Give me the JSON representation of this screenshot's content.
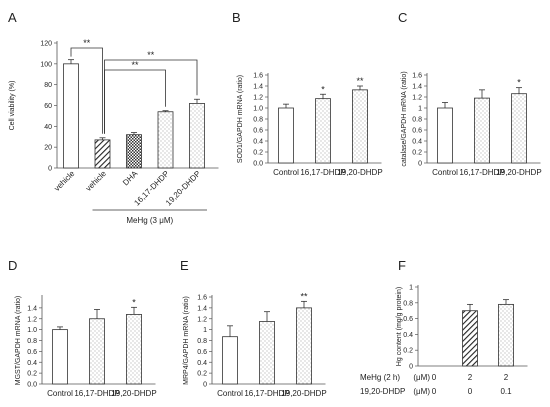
{
  "chart_data": [
    {
      "type": "bar",
      "panel": "A",
      "ylabel": "Cell viability (%)",
      "ylim": [
        0,
        120
      ],
      "yticks": [
        0,
        20,
        40,
        60,
        80,
        100,
        120
      ],
      "categories": [
        "vehicle",
        "vehicle",
        "DHA",
        "16,17-DHDP",
        "19,20-DHDP"
      ],
      "values": [
        100,
        27,
        32,
        54,
        62
      ],
      "errors": [
        4,
        2,
        2,
        1,
        4
      ],
      "patterns": [
        "white",
        "hatch",
        "crosshatch",
        "dots",
        "dots"
      ],
      "treatment_label": "MeHg (3 μM)",
      "significance": [
        {
          "from": 0,
          "to": 1,
          "label": "**"
        },
        {
          "from": 1,
          "to": 3,
          "label": "**"
        },
        {
          "from": 1,
          "to": 4,
          "label": "**"
        }
      ]
    },
    {
      "type": "bar",
      "panel": "B",
      "ylabel": "SOD1/GAPDH mRNA (ratio)",
      "ylim": [
        0,
        1.6
      ],
      "yticks": [
        0.0,
        0.2,
        0.4,
        0.6,
        0.8,
        1.0,
        1.2,
        1.4,
        1.6
      ],
      "categories": [
        "Control",
        "16,17-DHDP",
        "19,20-DHDP"
      ],
      "values": [
        1.0,
        1.17,
        1.33
      ],
      "errors": [
        0.07,
        0.08,
        0.07
      ],
      "patterns": [
        "white",
        "dots",
        "dots"
      ],
      "marks": [
        "",
        "*",
        "**"
      ]
    },
    {
      "type": "bar",
      "panel": "C",
      "ylabel": "catalase/GAPDH mRNA (ratio)",
      "ylim": [
        0,
        1.6
      ],
      "yticks": [
        0,
        0.2,
        0.4,
        0.6,
        0.8,
        1,
        1.2,
        1.4,
        1.6
      ],
      "categories": [
        "Control",
        "16,17-DHDP",
        "19,20-DHDP"
      ],
      "values": [
        1.0,
        1.18,
        1.26
      ],
      "errors": [
        0.1,
        0.15,
        0.11
      ],
      "patterns": [
        "white",
        "dots",
        "dots"
      ],
      "marks": [
        "",
        "",
        "*"
      ]
    },
    {
      "type": "bar",
      "panel": "D",
      "ylabel": "MGST/GAPDH mRNA (ratio)",
      "ylim": [
        0,
        1.6
      ],
      "yticks": [
        0.0,
        0.2,
        0.4,
        0.6,
        0.8,
        1.0,
        1.2,
        1.4
      ],
      "categories": [
        "Control",
        "16,17-DHDP",
        "19,20-DHDP"
      ],
      "values": [
        1.0,
        1.2,
        1.28
      ],
      "errors": [
        0.05,
        0.17,
        0.13
      ],
      "patterns": [
        "white",
        "dots",
        "dots"
      ],
      "marks": [
        "",
        "",
        "*"
      ]
    },
    {
      "type": "bar",
      "panel": "E",
      "ylabel": "MRP4/GAPDH mRNA (ratio)",
      "ylim": [
        0,
        1.6
      ],
      "yticks": [
        0,
        0.2,
        0.4,
        0.6,
        0.8,
        1,
        1.2,
        1.4,
        1.6
      ],
      "categories": [
        "Control",
        "16,17-DHDP",
        "19,20-DHDP"
      ],
      "values": [
        0.87,
        1.15,
        1.4
      ],
      "errors": [
        0.2,
        0.18,
        0.12
      ],
      "patterns": [
        "white",
        "dots",
        "dots"
      ],
      "marks": [
        "",
        "",
        "**"
      ]
    },
    {
      "type": "bar",
      "panel": "F",
      "ylabel": "Hg content (mg/g protein)",
      "ylim": [
        0,
        1
      ],
      "yticks": [
        0,
        0.2,
        0.4,
        0.6,
        0.8,
        1
      ],
      "values": [
        0,
        0.7,
        0.78
      ],
      "errors": [
        0,
        0.08,
        0.06
      ],
      "patterns": [
        "none",
        "hatch",
        "dots"
      ],
      "table": [
        {
          "label": "MeHg (2 h)",
          "unit": "(μM)",
          "values": [
            "0",
            "2",
            "2"
          ]
        },
        {
          "label": "19,20-DHDP",
          "unit": "(μM)",
          "values": [
            "0",
            "0",
            "0.1"
          ]
        }
      ]
    }
  ]
}
